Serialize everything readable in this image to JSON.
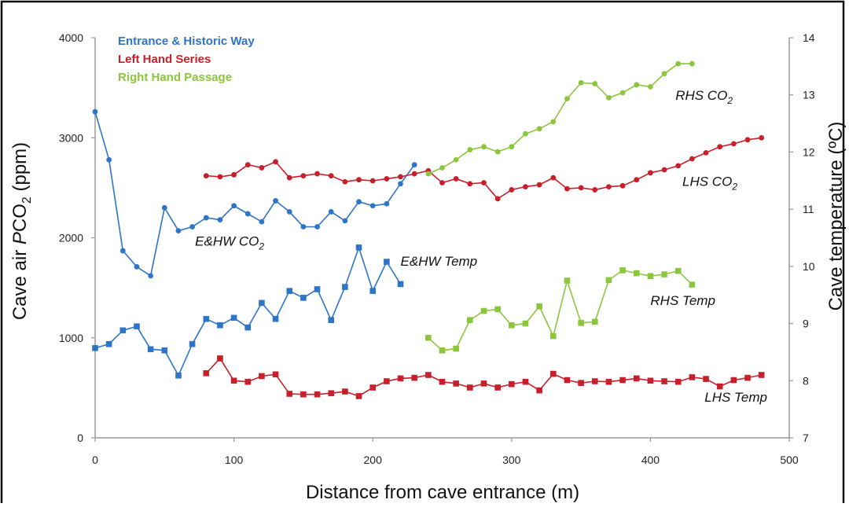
{
  "chart_data": {
    "type": "line",
    "xlabel": "Distance from cave entrance (m)",
    "ylabel_left": {
      "pre": "Cave air ",
      "italic": "P",
      "mid": "CO",
      "sub": "2",
      "post": " (ppm)"
    },
    "ylabel_right": "Cave temperature (ºC)",
    "xlim": [
      0,
      500
    ],
    "ylim_left": [
      0,
      4000
    ],
    "ylim_right": [
      7,
      14
    ],
    "x_ticks": [
      "0",
      "100",
      "200",
      "300",
      "400",
      "500"
    ],
    "y_left_ticks": [
      "0",
      "1000",
      "2000",
      "3000",
      "4000"
    ],
    "y_right_ticks": [
      "7",
      "8",
      "9",
      "10",
      "11",
      "12",
      "13",
      "14"
    ],
    "grid": false,
    "legend_position": "top-left",
    "legend": [
      {
        "label": "Entrance & Historic Way",
        "color": "#2e75c9"
      },
      {
        "label": "Left Hand Series",
        "color": "#c8202a"
      },
      {
        "label": "Right Hand Passage",
        "color": "#8cc63e"
      }
    ],
    "annotations": [
      {
        "id": "rhs-co2",
        "text": "RHS CO",
        "sub": "2",
        "x": 418,
        "y": 3380,
        "axis": "left"
      },
      {
        "id": "lhs-co2",
        "text": "LHS CO",
        "sub": "2",
        "x": 423,
        "y": 2520,
        "axis": "left"
      },
      {
        "id": "ehw-co2",
        "text": "E&HW CO",
        "sub": "2",
        "x": 72,
        "y": 1920,
        "axis": "left"
      },
      {
        "id": "ehw-temp",
        "text": "E&HW Temp",
        "sub": "",
        "x": 220,
        "y": 1720,
        "axis": "left"
      },
      {
        "id": "rhs-temp",
        "text": "RHS Temp",
        "sub": "",
        "x": 400,
        "y": 1330,
        "axis": "left"
      },
      {
        "id": "lhs-temp",
        "text": "LHS Temp",
        "sub": "",
        "x": 439,
        "y": 360,
        "axis": "left"
      }
    ],
    "series": [
      {
        "name": "E&HW CO2",
        "axis": "left",
        "marker": "circle",
        "color": "#2e75c9",
        "x": [
          0,
          10,
          20,
          30,
          40,
          50,
          60,
          70,
          80,
          90,
          100,
          110,
          120,
          130,
          140,
          150,
          160,
          170,
          180,
          190,
          200,
          210,
          220,
          230
        ],
        "y": [
          3260,
          2780,
          1870,
          1710,
          1620,
          2300,
          2070,
          2110,
          2200,
          2180,
          2320,
          2240,
          2160,
          2370,
          2260,
          2110,
          2110,
          2260,
          2170,
          2360,
          2320,
          2340,
          2540,
          2730
        ]
      },
      {
        "name": "E&HW Temp",
        "axis": "right",
        "marker": "square",
        "color": "#2e75c9",
        "x": [
          0,
          10,
          20,
          30,
          40,
          50,
          60,
          70,
          80,
          90,
          100,
          110,
          120,
          130,
          140,
          150,
          160,
          170,
          180,
          190,
          200,
          210,
          220
        ],
        "y": [
          8.57,
          8.64,
          8.88,
          8.95,
          8.55,
          8.53,
          8.09,
          8.64,
          9.08,
          8.97,
          9.1,
          8.93,
          9.36,
          9.08,
          9.57,
          9.45,
          9.6,
          9.06,
          9.64,
          10.33,
          9.57,
          10.08,
          9.69
        ]
      },
      {
        "name": "LHS CO2",
        "axis": "left",
        "marker": "circle",
        "color": "#c8202a",
        "x": [
          80,
          90,
          100,
          110,
          120,
          130,
          140,
          150,
          160,
          170,
          180,
          190,
          200,
          210,
          220,
          230,
          240,
          250,
          260,
          270,
          280,
          290,
          300,
          310,
          320,
          330,
          340,
          350,
          360,
          370,
          380,
          390,
          400,
          410,
          420,
          430,
          440,
          450,
          460,
          470,
          480
        ],
        "y": [
          2620,
          2610,
          2630,
          2730,
          2700,
          2760,
          2600,
          2620,
          2640,
          2620,
          2560,
          2580,
          2570,
          2590,
          2610,
          2640,
          2670,
          2550,
          2590,
          2540,
          2550,
          2390,
          2480,
          2510,
          2530,
          2600,
          2490,
          2500,
          2480,
          2510,
          2520,
          2580,
          2650,
          2680,
          2720,
          2790,
          2850,
          2910,
          2940,
          2980,
          3000
        ]
      },
      {
        "name": "LHS Temp",
        "axis": "right",
        "marker": "square",
        "color": "#c8202a",
        "x": [
          80,
          90,
          100,
          110,
          120,
          130,
          140,
          150,
          160,
          170,
          180,
          190,
          200,
          210,
          220,
          230,
          240,
          250,
          260,
          270,
          280,
          290,
          300,
          310,
          320,
          330,
          340,
          350,
          360,
          370,
          380,
          390,
          400,
          410,
          420,
          430,
          440,
          450,
          460,
          470,
          480
        ],
        "y": [
          8.13,
          8.39,
          8.0,
          7.98,
          8.08,
          8.11,
          7.77,
          7.76,
          7.76,
          7.78,
          7.81,
          7.73,
          7.88,
          7.99,
          8.04,
          8.05,
          8.1,
          7.98,
          7.95,
          7.88,
          7.95,
          7.88,
          7.94,
          7.98,
          7.83,
          8.12,
          8.01,
          7.96,
          7.99,
          7.98,
          8.01,
          8.04,
          8.0,
          7.99,
          7.98,
          8.06,
          8.03,
          7.9,
          8.01,
          8.05,
          8.1
        ]
      },
      {
        "name": "RHS CO2",
        "axis": "left",
        "marker": "circle",
        "color": "#8cc63e",
        "x": [
          240,
          250,
          260,
          270,
          280,
          290,
          300,
          310,
          320,
          330,
          340,
          350,
          360,
          370,
          380,
          390,
          400,
          410,
          420,
          430
        ],
        "y": [
          2640,
          2700,
          2780,
          2880,
          2910,
          2860,
          2910,
          3040,
          3090,
          3160,
          3390,
          3550,
          3540,
          3400,
          3450,
          3530,
          3510,
          3640,
          3740,
          3740
        ]
      },
      {
        "name": "RHS Temp",
        "axis": "right",
        "marker": "square",
        "color": "#8cc63e",
        "x": [
          240,
          250,
          260,
          270,
          280,
          290,
          300,
          310,
          320,
          330,
          340,
          350,
          360,
          370,
          380,
          390,
          400,
          410,
          420,
          430
        ],
        "y": [
          8.75,
          8.53,
          8.56,
          9.06,
          9.22,
          9.25,
          8.97,
          9.0,
          9.3,
          8.78,
          9.75,
          9.01,
          9.03,
          9.76,
          9.93,
          9.88,
          9.83,
          9.86,
          9.92,
          9.68
        ]
      }
    ]
  }
}
